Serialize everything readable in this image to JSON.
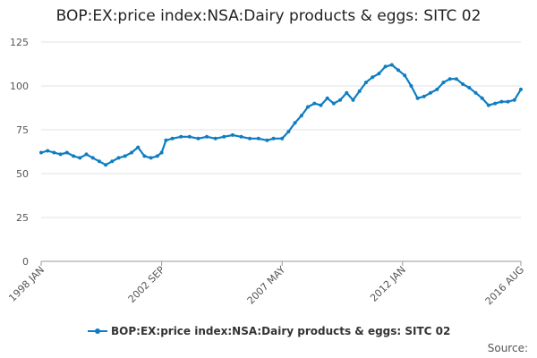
{
  "chart_data": {
    "type": "line",
    "title": "BOP:EX:price index:NSA:Dairy products & eggs: SITC 02",
    "xlabel": "",
    "ylabel": "",
    "ylim": [
      0,
      125
    ],
    "y_ticks": [
      0,
      25,
      50,
      75,
      100,
      125
    ],
    "x_range": [
      "1998-01",
      "2016-08"
    ],
    "x_ticks": [
      {
        "label": "1998 JAN",
        "date": "1998-01"
      },
      {
        "label": "2002 SEP",
        "date": "2002-09"
      },
      {
        "label": "2007 MAY",
        "date": "2007-05"
      },
      {
        "label": "2012 JAN",
        "date": "2012-01"
      },
      {
        "label": "2016 AUG",
        "date": "2016-08"
      }
    ],
    "grid": true,
    "legend_position": "bottom",
    "series": [
      {
        "name": "BOP:EX:price index:NSA:Dairy products & eggs: SITC 02",
        "color": "#0f7dc2",
        "points": [
          [
            "1998-01",
            62
          ],
          [
            "1998-04",
            63
          ],
          [
            "1998-07",
            62
          ],
          [
            "1998-10",
            61
          ],
          [
            "1999-01",
            62
          ],
          [
            "1999-04",
            60
          ],
          [
            "1999-07",
            59
          ],
          [
            "1999-10",
            61
          ],
          [
            "2000-01",
            59
          ],
          [
            "2000-04",
            57
          ],
          [
            "2000-07",
            55
          ],
          [
            "2000-10",
            57
          ],
          [
            "2001-01",
            59
          ],
          [
            "2001-04",
            60
          ],
          [
            "2001-07",
            62
          ],
          [
            "2001-10",
            65
          ],
          [
            "2002-01",
            60
          ],
          [
            "2002-04",
            59
          ],
          [
            "2002-07",
            60
          ],
          [
            "2002-09",
            62
          ],
          [
            "2002-11",
            69
          ],
          [
            "2003-02",
            70
          ],
          [
            "2003-06",
            71
          ],
          [
            "2003-10",
            71
          ],
          [
            "2004-02",
            70
          ],
          [
            "2004-06",
            71
          ],
          [
            "2004-10",
            70
          ],
          [
            "2005-02",
            71
          ],
          [
            "2005-06",
            72
          ],
          [
            "2005-10",
            71
          ],
          [
            "2006-02",
            70
          ],
          [
            "2006-06",
            70
          ],
          [
            "2006-10",
            69
          ],
          [
            "2007-01",
            70
          ],
          [
            "2007-05",
            70
          ],
          [
            "2007-08",
            74
          ],
          [
            "2007-11",
            79
          ],
          [
            "2008-02",
            83
          ],
          [
            "2008-05",
            88
          ],
          [
            "2008-08",
            90
          ],
          [
            "2008-11",
            89
          ],
          [
            "2009-02",
            93
          ],
          [
            "2009-05",
            90
          ],
          [
            "2009-08",
            92
          ],
          [
            "2009-11",
            96
          ],
          [
            "2010-02",
            92
          ],
          [
            "2010-05",
            97
          ],
          [
            "2010-08",
            102
          ],
          [
            "2010-11",
            105
          ],
          [
            "2011-02",
            107
          ],
          [
            "2011-05",
            111
          ],
          [
            "2011-08",
            112
          ],
          [
            "2011-11",
            109
          ],
          [
            "2012-02",
            106
          ],
          [
            "2012-05",
            100
          ],
          [
            "2012-08",
            93
          ],
          [
            "2012-11",
            94
          ],
          [
            "2013-02",
            96
          ],
          [
            "2013-05",
            98
          ],
          [
            "2013-08",
            102
          ],
          [
            "2013-11",
            104
          ],
          [
            "2014-02",
            104
          ],
          [
            "2014-05",
            101
          ],
          [
            "2014-08",
            99
          ],
          [
            "2014-11",
            96
          ],
          [
            "2015-02",
            93
          ],
          [
            "2015-05",
            89
          ],
          [
            "2015-08",
            90
          ],
          [
            "2015-11",
            91
          ],
          [
            "2016-02",
            91
          ],
          [
            "2016-05",
            92
          ],
          [
            "2016-08",
            98
          ]
        ]
      }
    ],
    "source_label": "Source:"
  }
}
